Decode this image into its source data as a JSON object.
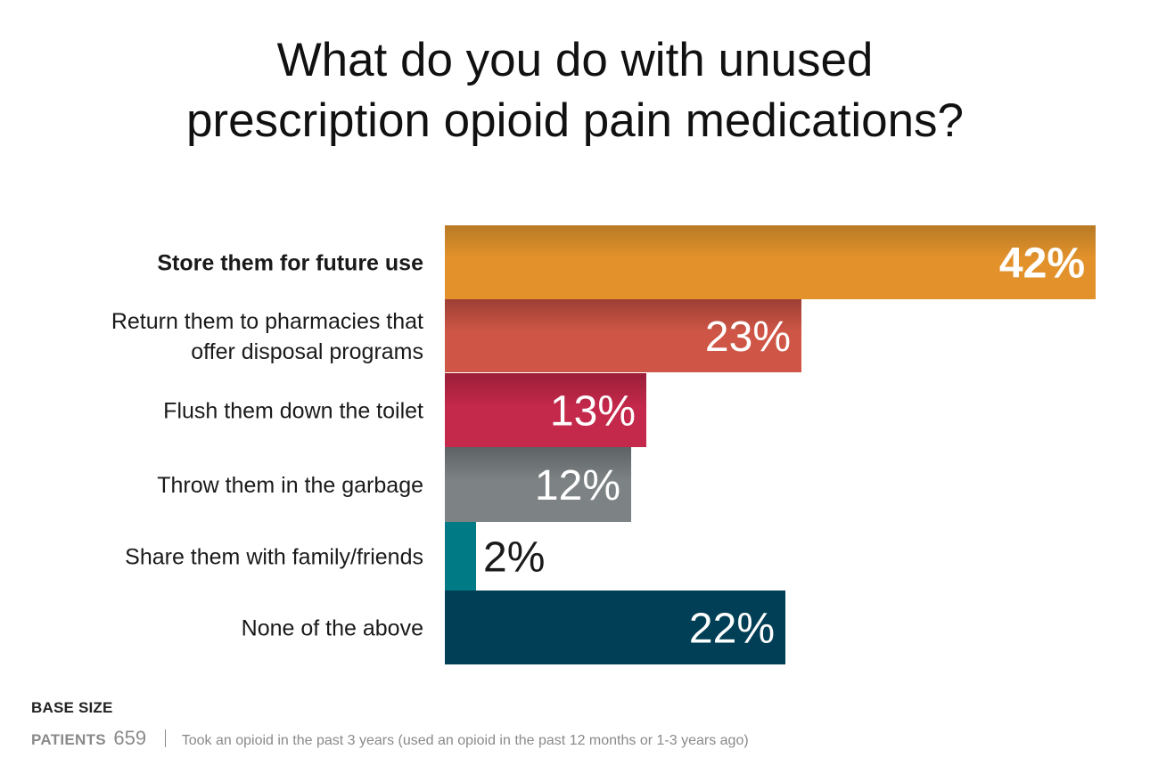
{
  "title_lines": [
    "What do you do with unused",
    "prescription opioid pain medications?"
  ],
  "footer": {
    "base_size_label": "BASE SIZE",
    "group_label": "PATIENTS",
    "group_n": "659",
    "description": "Took an opioid in the past 3 years (used an opioid in the past 12 months or 1-3 years ago)"
  },
  "chart_data": {
    "type": "bar",
    "orientation": "horizontal",
    "title": "What do you do with unused prescription opioid pain medications?",
    "xlim": [
      0,
      42
    ],
    "grid": false,
    "categories": [
      [
        "Store them for future use"
      ],
      [
        "Return them to pharmacies that",
        "offer disposal programs"
      ],
      [
        "Flush them down the toilet"
      ],
      [
        "Throw them in the garbage"
      ],
      [
        "Share them with family/friends"
      ],
      [
        "None of the above"
      ]
    ],
    "values": [
      42,
      23,
      13,
      12,
      2,
      22
    ],
    "value_labels": [
      "42%",
      "23%",
      "13%",
      "12%",
      "2%",
      "22%"
    ],
    "colors": [
      [
        "#b87a25",
        "#e3922b"
      ],
      [
        "#9c3f35",
        "#cf5646"
      ],
      [
        "#9a1f38",
        "#c4284a"
      ],
      [
        "#5d6264",
        "#7d8385"
      ],
      [
        "#007a85",
        "#007a85"
      ],
      [
        "#003f55",
        "#003f55"
      ]
    ],
    "emphasis": [
      true,
      false,
      false,
      false,
      false,
      false
    ]
  }
}
